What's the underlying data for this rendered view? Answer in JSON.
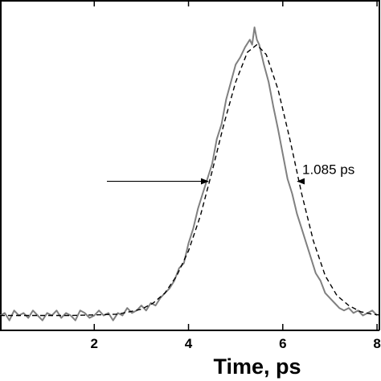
{
  "chart_data": {
    "type": "line",
    "title": "",
    "xlabel": "Time,  ps",
    "ylabel": "",
    "xlim": [
      0.0,
      8.05
    ],
    "ylim": [
      -0.05,
      1.28
    ],
    "xticks": [
      2,
      4,
      6,
      8
    ],
    "xtick_labels": [
      "2",
      "4",
      "6",
      "8"
    ],
    "grid": false,
    "legend": "none",
    "series": [
      {
        "style": "solid",
        "color": "#808080",
        "x": [
          0.0,
          0.1,
          0.2,
          0.3,
          0.4,
          0.5,
          0.6,
          0.7,
          0.8,
          0.9,
          1.0,
          1.1,
          1.2,
          1.3,
          1.4,
          1.5,
          1.6,
          1.7,
          1.8,
          1.9,
          2.0,
          2.1,
          2.2,
          2.3,
          2.4,
          2.5,
          2.6,
          2.7,
          2.8,
          2.9,
          3.0,
          3.1,
          3.2,
          3.3,
          3.4,
          3.5,
          3.6,
          3.7,
          3.8,
          3.9,
          4.0,
          4.1,
          4.2,
          4.3,
          4.4,
          4.5,
          4.6,
          4.7,
          4.8,
          4.9,
          5.0,
          5.1,
          5.2,
          5.3,
          5.35,
          5.4,
          5.45,
          5.5,
          5.6,
          5.7,
          5.8,
          5.9,
          6.0,
          6.1,
          6.2,
          6.3,
          6.4,
          6.5,
          6.6,
          6.7,
          6.8,
          6.9,
          7.0,
          7.1,
          7.2,
          7.3,
          7.4,
          7.5,
          7.6,
          7.7,
          7.8,
          7.9,
          8.0
        ],
        "values": [
          0.01,
          0.02,
          -0.01,
          0.03,
          0.01,
          0.02,
          0.0,
          0.03,
          0.01,
          -0.01,
          0.02,
          0.01,
          0.03,
          0.0,
          0.02,
          0.01,
          -0.01,
          0.03,
          0.02,
          0.0,
          0.01,
          0.03,
          0.01,
          0.02,
          -0.01,
          0.02,
          0.01,
          0.04,
          0.02,
          0.03,
          0.05,
          0.03,
          0.06,
          0.05,
          0.08,
          0.1,
          0.12,
          0.15,
          0.2,
          0.22,
          0.3,
          0.36,
          0.44,
          0.5,
          0.56,
          0.62,
          0.72,
          0.78,
          0.88,
          0.95,
          1.02,
          1.05,
          1.09,
          1.12,
          1.1,
          1.17,
          1.12,
          1.1,
          1.02,
          0.95,
          0.85,
          0.76,
          0.66,
          0.56,
          0.5,
          0.42,
          0.36,
          0.3,
          0.24,
          0.18,
          0.15,
          0.1,
          0.08,
          0.06,
          0.04,
          0.03,
          0.04,
          0.02,
          0.03,
          0.01,
          0.02,
          0.03,
          0.01
        ]
      },
      {
        "style": "dashed",
        "color": "#000000",
        "x": [
          0.0,
          0.5,
          1.0,
          1.5,
          2.0,
          2.5,
          3.0,
          3.25,
          3.5,
          3.75,
          4.0,
          4.25,
          4.5,
          4.75,
          5.0,
          5.25,
          5.45,
          5.65,
          5.9,
          6.15,
          6.4,
          6.65,
          6.9,
          7.15,
          7.4,
          7.65,
          7.9,
          8.05
        ],
        "values": [
          0.01,
          0.01,
          0.01,
          0.01,
          0.012,
          0.015,
          0.035,
          0.06,
          0.1,
          0.17,
          0.27,
          0.41,
          0.59,
          0.78,
          0.95,
          1.07,
          1.1,
          1.06,
          0.92,
          0.72,
          0.5,
          0.31,
          0.17,
          0.09,
          0.05,
          0.025,
          0.015,
          0.012
        ]
      }
    ],
    "annotations": [
      {
        "text": "1.085 ps",
        "width_start_x": 4.45,
        "width_end_x": 6.28,
        "level_y": 0.55
      }
    ]
  }
}
